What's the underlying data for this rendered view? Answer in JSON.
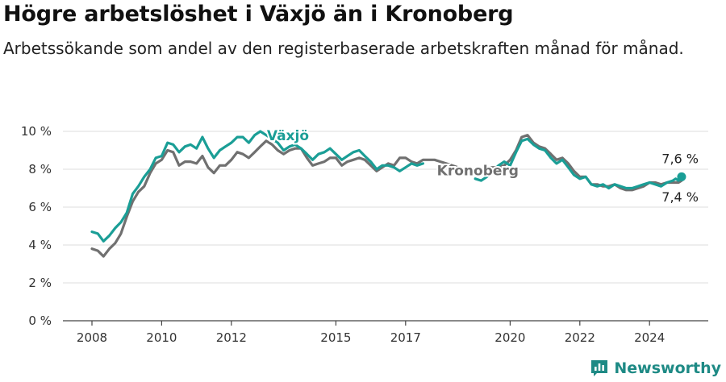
{
  "header": {
    "title": "Högre arbetslöshet i Växjö än i Kronoberg",
    "subtitle": "Arbetssökande som andel av den registerbaserade arbetskraften månad för månad."
  },
  "brand": {
    "name": "Newsworthy"
  },
  "chart_data": {
    "type": "line",
    "title": "Högre arbetslöshet i Växjö än i Kronoberg",
    "subtitle": "Arbetssökande som andel av den registerbaserade arbetskraften månad för månad.",
    "xlabel": "",
    "ylabel": "",
    "xlim": [
      2008,
      2025.1
    ],
    "ylim": [
      0,
      10
    ],
    "y_ticks": [
      0,
      2,
      4,
      6,
      8,
      10
    ],
    "y_tick_labels": [
      "0 %",
      "2 %",
      "4 %",
      "6 %",
      "8 %",
      "10 %"
    ],
    "x_ticks": [
      2008,
      2010,
      2012,
      2015,
      2017,
      2020,
      2022,
      2024
    ],
    "x_tick_labels": [
      "2008",
      "2010",
      "2012",
      "2015",
      "2017",
      "2020",
      "2022",
      "2024"
    ],
    "grid": true,
    "legend": "direct labels on lines",
    "annotations": [
      "7,6 %",
      "7,4 %"
    ],
    "series": [
      {
        "name": "Växjö",
        "color": "#1a9e96",
        "points": [
          [
            2008.0,
            4.7
          ],
          [
            2008.17,
            4.6
          ],
          [
            2008.33,
            4.2
          ],
          [
            2008.5,
            4.5
          ],
          [
            2008.67,
            4.9
          ],
          [
            2008.83,
            5.2
          ],
          [
            2009.0,
            5.7
          ],
          [
            2009.17,
            6.7
          ],
          [
            2009.33,
            7.1
          ],
          [
            2009.5,
            7.6
          ],
          [
            2009.67,
            8.0
          ],
          [
            2009.83,
            8.6
          ],
          [
            2010.0,
            8.7
          ],
          [
            2010.17,
            9.4
          ],
          [
            2010.33,
            9.3
          ],
          [
            2010.5,
            8.9
          ],
          [
            2010.67,
            9.2
          ],
          [
            2010.83,
            9.3
          ],
          [
            2011.0,
            9.1
          ],
          [
            2011.17,
            9.7
          ],
          [
            2011.33,
            9.1
          ],
          [
            2011.5,
            8.6
          ],
          [
            2011.67,
            9.0
          ],
          [
            2011.83,
            9.2
          ],
          [
            2012.0,
            9.4
          ],
          [
            2012.17,
            9.7
          ],
          [
            2012.33,
            9.7
          ],
          [
            2012.5,
            9.4
          ],
          [
            2012.67,
            9.8
          ],
          [
            2012.83,
            10.0
          ],
          [
            2013.0,
            9.8
          ],
          [
            2013.17,
            9.6
          ],
          [
            2013.33,
            9.4
          ],
          [
            2013.5,
            9.0
          ],
          [
            2013.67,
            9.2
          ],
          [
            2013.83,
            9.3
          ],
          [
            2014.0,
            9.1
          ],
          [
            2014.17,
            8.8
          ],
          [
            2014.33,
            8.5
          ],
          [
            2014.5,
            8.8
          ],
          [
            2014.67,
            8.9
          ],
          [
            2014.83,
            9.1
          ],
          [
            2015.0,
            8.8
          ],
          [
            2015.17,
            8.5
          ],
          [
            2015.33,
            8.7
          ],
          [
            2015.5,
            8.9
          ],
          [
            2015.67,
            9.0
          ],
          [
            2015.83,
            8.7
          ],
          [
            2016.0,
            8.4
          ],
          [
            2016.17,
            8.0
          ],
          [
            2016.33,
            8.2
          ],
          [
            2016.5,
            8.2
          ],
          [
            2016.67,
            8.1
          ],
          [
            2016.83,
            7.9
          ],
          [
            2017.0,
            8.1
          ],
          [
            2017.17,
            8.3
          ],
          [
            2017.33,
            8.2
          ],
          [
            2017.5,
            8.3
          ]
        ],
        "points_2": [
          [
            2019.0,
            7.5
          ],
          [
            2019.17,
            7.4
          ],
          [
            2019.33,
            7.6
          ],
          [
            2019.5,
            7.9
          ],
          [
            2019.67,
            8.2
          ],
          [
            2019.83,
            8.4
          ],
          [
            2020.0,
            8.2
          ],
          [
            2020.17,
            8.9
          ],
          [
            2020.33,
            9.5
          ],
          [
            2020.5,
            9.6
          ],
          [
            2020.67,
            9.3
          ],
          [
            2020.83,
            9.1
          ],
          [
            2021.0,
            9.0
          ],
          [
            2021.17,
            8.6
          ],
          [
            2021.33,
            8.3
          ],
          [
            2021.5,
            8.5
          ],
          [
            2021.67,
            8.1
          ],
          [
            2021.83,
            7.7
          ],
          [
            2022.0,
            7.5
          ],
          [
            2022.17,
            7.6
          ],
          [
            2022.33,
            7.2
          ],
          [
            2022.5,
            7.1
          ],
          [
            2022.67,
            7.2
          ],
          [
            2022.83,
            7.0
          ],
          [
            2023.0,
            7.2
          ],
          [
            2023.17,
            7.1
          ],
          [
            2023.33,
            7.0
          ],
          [
            2023.5,
            7.0
          ],
          [
            2023.67,
            7.1
          ],
          [
            2023.83,
            7.2
          ],
          [
            2024.0,
            7.3
          ],
          [
            2024.17,
            7.2
          ],
          [
            2024.33,
            7.1
          ],
          [
            2024.5,
            7.3
          ],
          [
            2024.67,
            7.4
          ],
          [
            2024.75,
            7.5
          ],
          [
            2024.83,
            7.4
          ],
          [
            2024.92,
            7.6
          ]
        ],
        "last_value": 7.6,
        "last_label": "7,6 %"
      },
      {
        "name": "Kronoberg",
        "color": "#707070",
        "points": [
          [
            2008.0,
            3.8
          ],
          [
            2008.17,
            3.7
          ],
          [
            2008.33,
            3.4
          ],
          [
            2008.5,
            3.8
          ],
          [
            2008.67,
            4.1
          ],
          [
            2008.83,
            4.6
          ],
          [
            2009.0,
            5.5
          ],
          [
            2009.17,
            6.3
          ],
          [
            2009.33,
            6.8
          ],
          [
            2009.5,
            7.1
          ],
          [
            2009.67,
            7.8
          ],
          [
            2009.83,
            8.3
          ],
          [
            2010.0,
            8.5
          ],
          [
            2010.17,
            9.0
          ],
          [
            2010.33,
            8.9
          ],
          [
            2010.5,
            8.2
          ],
          [
            2010.67,
            8.4
          ],
          [
            2010.83,
            8.4
          ],
          [
            2011.0,
            8.3
          ],
          [
            2011.17,
            8.7
          ],
          [
            2011.33,
            8.1
          ],
          [
            2011.5,
            7.8
          ],
          [
            2011.67,
            8.2
          ],
          [
            2011.83,
            8.2
          ],
          [
            2012.0,
            8.5
          ],
          [
            2012.17,
            8.9
          ],
          [
            2012.33,
            8.8
          ],
          [
            2012.5,
            8.6
          ],
          [
            2012.67,
            8.9
          ],
          [
            2012.83,
            9.2
          ],
          [
            2013.0,
            9.5
          ],
          [
            2013.17,
            9.3
          ],
          [
            2013.33,
            9.0
          ],
          [
            2013.5,
            8.8
          ],
          [
            2013.67,
            9.0
          ],
          [
            2013.83,
            9.1
          ],
          [
            2014.0,
            9.1
          ],
          [
            2014.17,
            8.6
          ],
          [
            2014.33,
            8.2
          ],
          [
            2014.5,
            8.3
          ],
          [
            2014.67,
            8.4
          ],
          [
            2014.83,
            8.6
          ],
          [
            2015.0,
            8.6
          ],
          [
            2015.17,
            8.2
          ],
          [
            2015.33,
            8.4
          ],
          [
            2015.5,
            8.5
          ],
          [
            2015.67,
            8.6
          ],
          [
            2015.83,
            8.5
          ],
          [
            2016.0,
            8.2
          ],
          [
            2016.17,
            7.9
          ],
          [
            2016.33,
            8.1
          ],
          [
            2016.5,
            8.3
          ],
          [
            2016.67,
            8.2
          ],
          [
            2016.83,
            8.6
          ],
          [
            2017.0,
            8.6
          ],
          [
            2017.17,
            8.4
          ],
          [
            2017.33,
            8.3
          ],
          [
            2017.5,
            8.5
          ],
          [
            2017.67,
            8.5
          ],
          [
            2017.83,
            8.5
          ],
          [
            2018.0,
            8.4
          ],
          [
            2018.17,
            8.3
          ],
          [
            2018.33,
            8.2
          ],
          [
            2018.5,
            8.1
          ],
          [
            2018.67,
            8.0
          ],
          [
            2018.83,
            8.0
          ],
          [
            2019.0,
            7.9
          ],
          [
            2019.17,
            8.0
          ],
          [
            2019.33,
            8.1
          ],
          [
            2019.5,
            8.1
          ],
          [
            2019.67,
            8.1
          ],
          [
            2019.83,
            8.2
          ],
          [
            2020.0,
            8.5
          ],
          [
            2020.17,
            9.0
          ],
          [
            2020.33,
            9.7
          ],
          [
            2020.5,
            9.8
          ],
          [
            2020.67,
            9.4
          ],
          [
            2020.83,
            9.2
          ],
          [
            2021.0,
            9.1
          ],
          [
            2021.17,
            8.8
          ],
          [
            2021.33,
            8.5
          ],
          [
            2021.5,
            8.6
          ],
          [
            2021.67,
            8.3
          ],
          [
            2021.83,
            7.9
          ],
          [
            2022.0,
            7.6
          ],
          [
            2022.17,
            7.6
          ],
          [
            2022.33,
            7.2
          ],
          [
            2022.5,
            7.2
          ],
          [
            2022.67,
            7.1
          ],
          [
            2022.83,
            7.1
          ],
          [
            2023.0,
            7.2
          ],
          [
            2023.17,
            7.0
          ],
          [
            2023.33,
            6.9
          ],
          [
            2023.5,
            6.9
          ],
          [
            2023.67,
            7.0
          ],
          [
            2023.83,
            7.1
          ],
          [
            2024.0,
            7.3
          ],
          [
            2024.17,
            7.3
          ],
          [
            2024.33,
            7.2
          ],
          [
            2024.5,
            7.3
          ],
          [
            2024.67,
            7.3
          ],
          [
            2024.83,
            7.3
          ],
          [
            2024.92,
            7.4
          ]
        ],
        "last_value": 7.4,
        "last_label": "7,4 %"
      }
    ]
  }
}
